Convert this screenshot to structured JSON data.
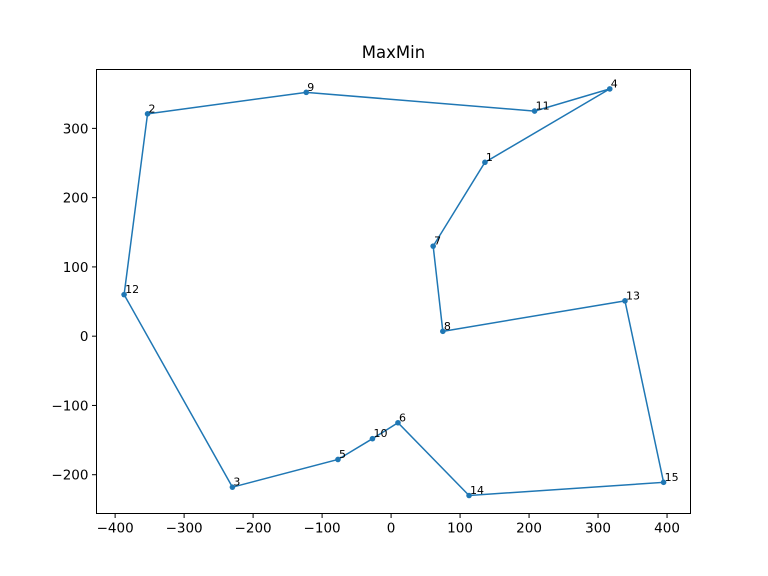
{
  "chart_data": {
    "type": "line",
    "title": "MaxMin",
    "xlabel": "",
    "ylabel": "",
    "xlim": [
      -427,
      434
    ],
    "ylim": [
      -256,
      385
    ],
    "xticks": [
      -400,
      -300,
      -200,
      -100,
      0,
      100,
      200,
      300,
      400
    ],
    "xtick_labels": [
      "−400",
      "−300",
      "−200",
      "−100",
      "0",
      "100",
      "200",
      "300",
      "400"
    ],
    "yticks": [
      -200,
      -100,
      0,
      100,
      200,
      300
    ],
    "ytick_labels": [
      "−200",
      "−100",
      "0",
      "100",
      "200",
      "300"
    ],
    "grid": false,
    "line_color": "#1f77b4",
    "points": [
      {
        "label": "2",
        "x": -353,
        "y": 321
      },
      {
        "label": "9",
        "x": -123,
        "y": 352
      },
      {
        "label": "11",
        "x": 208,
        "y": 325
      },
      {
        "label": "4",
        "x": 317,
        "y": 357
      },
      {
        "label": "1",
        "x": 136,
        "y": 251
      },
      {
        "label": "7",
        "x": 61,
        "y": 130
      },
      {
        "label": "8",
        "x": 75,
        "y": 7
      },
      {
        "label": "13",
        "x": 339,
        "y": 51
      },
      {
        "label": "15",
        "x": 395,
        "y": -211
      },
      {
        "label": "14",
        "x": 113,
        "y": -230
      },
      {
        "label": "6",
        "x": 10,
        "y": -125
      },
      {
        "label": "10",
        "x": -27,
        "y": -148
      },
      {
        "label": "5",
        "x": -77,
        "y": -178
      },
      {
        "label": "3",
        "x": -230,
        "y": -218
      },
      {
        "label": "12",
        "x": -387,
        "y": 60
      }
    ]
  }
}
